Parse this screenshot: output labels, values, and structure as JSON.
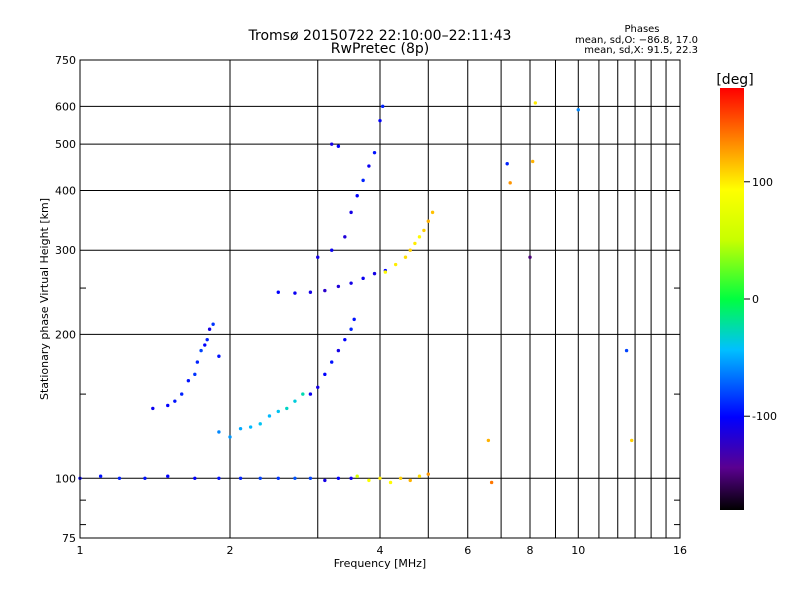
{
  "chart_data": {
    "type": "scatter",
    "title": "Tromsø 20150722 22:10:00–22:11:43",
    "subtitle": "RwPretec (8p)",
    "xlabel": "Frequency [MHz]",
    "ylabel": "Stationary phase Virtual Height [km]",
    "x_scale": "log",
    "y_scale": "log",
    "xlim": [
      1,
      16
    ],
    "ylim": [
      75,
      750
    ],
    "x_ticks": [
      1,
      2,
      4,
      6,
      8,
      10,
      16
    ],
    "y_ticks": [
      75,
      100,
      200,
      300,
      400,
      500,
      600,
      750
    ],
    "x_minor_ticks": [
      3,
      5,
      7,
      9,
      11,
      12,
      13,
      14,
      15
    ],
    "y_minor_ticks": [
      80,
      90,
      150,
      250
    ],
    "grid": true,
    "stats": {
      "heading": "Phases",
      "line_o": "mean, sd,O: −86.8, 17.0",
      "line_x": "mean, sd,X:  91.5, 22.3"
    },
    "colorbar": {
      "label": "[deg]",
      "ticks": [
        100,
        0,
        -100
      ],
      "range": [
        -180,
        180
      ],
      "colormap": "rainbow"
    },
    "series": [
      {
        "x": [
          1.0,
          1.1,
          1.2,
          1.35,
          1.5,
          1.7,
          1.9,
          2.1,
          2.3,
          2.5,
          2.7,
          2.9,
          3.1,
          3.3,
          3.5
        ],
        "y": [
          100,
          101,
          100,
          100,
          101,
          100,
          100,
          100,
          100,
          100,
          100,
          100,
          99,
          100,
          100
        ],
        "phase": [
          -100,
          -95,
          -90,
          -95,
          -100,
          -100,
          -95,
          -90,
          -80,
          -85,
          -75,
          -80,
          -110,
          -100,
          -105
        ]
      },
      {
        "x": [
          3.6,
          3.8,
          4.0,
          4.2,
          4.4,
          4.6,
          4.8,
          5.0
        ],
        "y": [
          101,
          99,
          100,
          98,
          100,
          99,
          101,
          102
        ],
        "phase": [
          60,
          90,
          100,
          95,
          110,
          120,
          105,
          130
        ]
      },
      {
        "x": [
          1.4,
          1.5,
          1.55,
          1.6,
          1.65,
          1.7,
          1.72,
          1.75,
          1.78,
          1.8,
          1.82,
          1.85,
          1.9
        ],
        "y": [
          140,
          142,
          145,
          150,
          160,
          165,
          175,
          185,
          190,
          195,
          205,
          210,
          180
        ],
        "phase": [
          -105,
          -100,
          -95,
          -90,
          -95,
          -85,
          -90,
          -80,
          -100,
          -90,
          -110,
          -85,
          -95
        ]
      },
      {
        "x": [
          1.9,
          2.0,
          2.1,
          2.2,
          2.3,
          2.4,
          2.5,
          2.6,
          2.7,
          2.8
        ],
        "y": [
          125,
          122,
          127,
          128,
          130,
          135,
          138,
          140,
          145,
          150
        ],
        "phase": [
          -60,
          -55,
          -50,
          -45,
          -40,
          -45,
          -40,
          -30,
          -35,
          -25
        ]
      },
      {
        "x": [
          2.9,
          3.0,
          3.1,
          3.2,
          3.3,
          3.4,
          3.5,
          3.55
        ],
        "y": [
          150,
          155,
          165,
          175,
          185,
          195,
          205,
          215
        ],
        "phase": [
          -105,
          -110,
          -100,
          -95,
          -110,
          -100,
          -90,
          -95
        ]
      },
      {
        "x": [
          2.5,
          2.7,
          2.9,
          3.1,
          3.3,
          3.5,
          3.7,
          3.9,
          4.1
        ],
        "y": [
          245,
          244,
          245,
          247,
          252,
          256,
          262,
          268,
          272
        ],
        "phase": [
          -100,
          -105,
          -110,
          -120,
          -115,
          -110,
          -105,
          -110,
          -100
        ]
      },
      {
        "x": [
          3.0,
          3.2,
          3.4,
          3.5,
          3.6,
          3.7,
          3.8,
          3.9,
          4.0,
          4.05
        ],
        "y": [
          290,
          300,
          320,
          360,
          390,
          420,
          450,
          480,
          560,
          600
        ],
        "phase": [
          -110,
          -105,
          -115,
          -110,
          -100,
          -90,
          -105,
          -95,
          -100,
          -90
        ]
      },
      {
        "x": [
          4.1,
          4.3,
          4.5,
          4.6,
          4.7,
          4.8,
          4.9,
          5.0,
          5.1
        ],
        "y": [
          270,
          280,
          290,
          300,
          310,
          320,
          330,
          345,
          360
        ],
        "phase": [
          95,
          100,
          105,
          110,
          100,
          95,
          110,
          120,
          115
        ]
      },
      {
        "x": [
          3.2,
          3.3
        ],
        "y": [
          500,
          495
        ],
        "phase": [
          -110,
          -100
        ]
      },
      {
        "x": [
          6.6,
          6.7,
          7.2,
          7.3,
          8.0,
          8.1,
          8.2,
          10.0,
          12.5,
          12.8
        ],
        "y": [
          120,
          98,
          455,
          415,
          290,
          460,
          610,
          590,
          185,
          120
        ],
        "phase": [
          120,
          140,
          -90,
          130,
          -150,
          120,
          100,
          -60,
          -80,
          110
        ]
      }
    ]
  }
}
